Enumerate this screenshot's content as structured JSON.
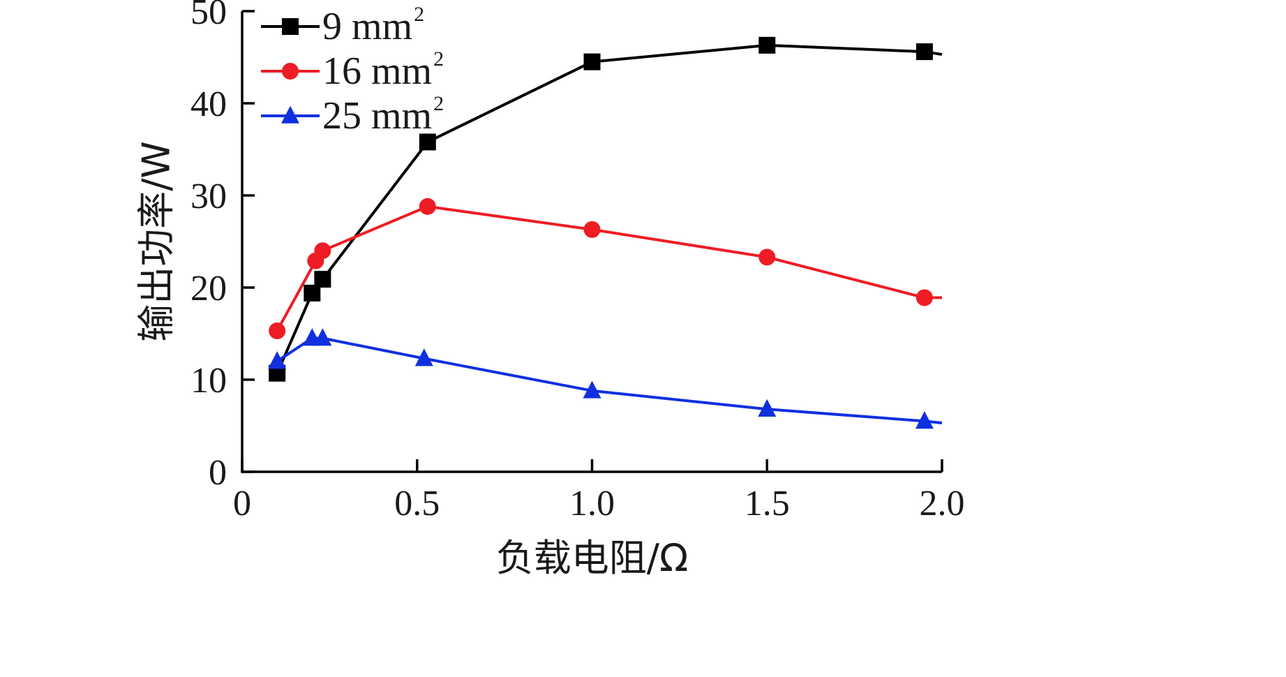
{
  "chart_data": {
    "type": "line",
    "title": "",
    "xlabel": "负载电阻/Ω",
    "ylabel": "输出功率/W",
    "xlim": [
      0,
      2.0
    ],
    "ylim": [
      0,
      50
    ],
    "x_ticks": [
      0,
      0.5,
      1.0,
      1.5,
      2.0
    ],
    "x_tick_labels": [
      "0",
      "0.5",
      "1.0",
      "1.5",
      "2.0"
    ],
    "y_ticks": [
      0,
      10,
      20,
      30,
      40,
      50
    ],
    "y_tick_labels": [
      "0",
      "10",
      "20",
      "30",
      "40",
      "50"
    ],
    "grid": false,
    "legend_position": "top-left",
    "series": [
      {
        "name": "9 mm",
        "name_sup": "2",
        "color": "#000000",
        "marker": "square",
        "x": [
          0.1,
          0.2,
          0.23,
          0.53,
          1.0,
          1.5,
          1.95
        ],
        "y": [
          10.7,
          19.4,
          20.9,
          35.8,
          44.5,
          46.3,
          45.6
        ],
        "line_end_x": 2.0,
        "line_end_y": 45.3
      },
      {
        "name": "16 mm",
        "name_sup": "2",
        "color": "#ee1c24",
        "marker": "circle",
        "x": [
          0.1,
          0.21,
          0.23,
          0.53,
          1.0,
          1.5,
          1.95
        ],
        "y": [
          15.3,
          22.9,
          24.0,
          28.8,
          26.3,
          23.3,
          18.9
        ],
        "line_end_x": 2.0,
        "line_end_y": 18.9
      },
      {
        "name": "25 mm",
        "name_sup": "2",
        "color": "#1030e0",
        "marker": "triangle",
        "x": [
          0.1,
          0.2,
          0.23,
          0.52,
          1.0,
          1.5,
          1.95
        ],
        "y": [
          12.0,
          14.5,
          14.5,
          12.3,
          8.8,
          6.8,
          5.5
        ],
        "line_end_x": 2.0,
        "line_end_y": 5.3
      }
    ]
  }
}
